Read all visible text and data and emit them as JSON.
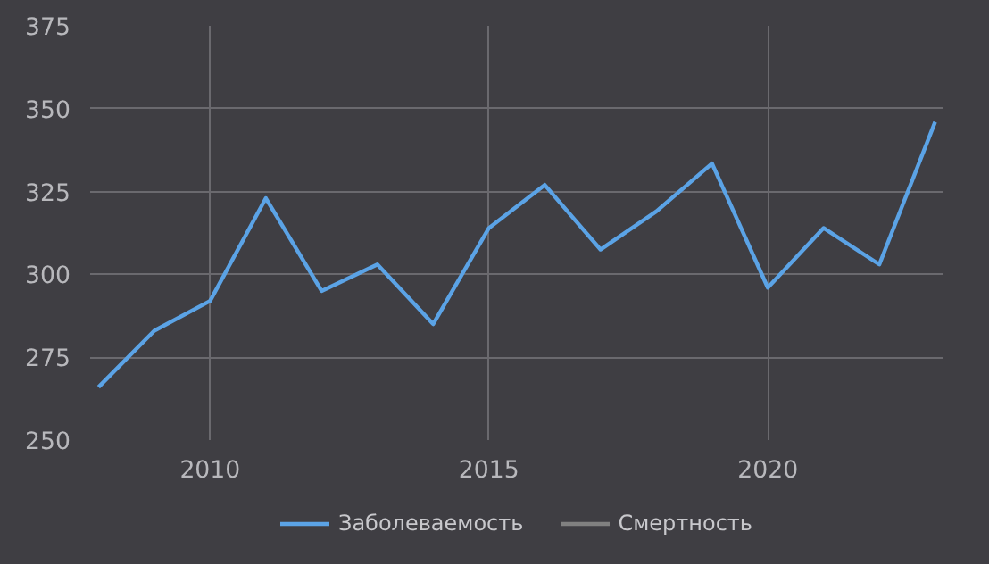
{
  "chart_data": {
    "type": "line",
    "x": [
      2008,
      2009,
      2010,
      2011,
      2012,
      2013,
      2014,
      2015,
      2016,
      2017,
      2018,
      2019,
      2020,
      2021,
      2022,
      2023
    ],
    "series": [
      {
        "name": "Заболеваемость",
        "color": "#5ba3e6",
        "values": [
          266,
          283,
          292,
          323,
          295,
          303,
          285,
          314,
          327,
          307.5,
          319,
          333.5,
          296,
          314,
          303,
          346
        ]
      },
      {
        "name": "Смертность",
        "color": "#808080",
        "values": [
          null,
          null,
          null,
          null,
          null,
          null,
          null,
          null,
          null,
          null,
          null,
          null,
          null,
          null,
          null,
          null
        ]
      }
    ],
    "xlim": [
      2007.85,
      2023.15
    ],
    "xticks": [
      2010,
      2015,
      2020
    ],
    "ylim": [
      250,
      375
    ],
    "yticks": [
      250,
      275,
      300,
      325,
      350,
      375
    ],
    "grid": true,
    "legend": "bottom",
    "marker": "none",
    "line_style": "solid"
  }
}
